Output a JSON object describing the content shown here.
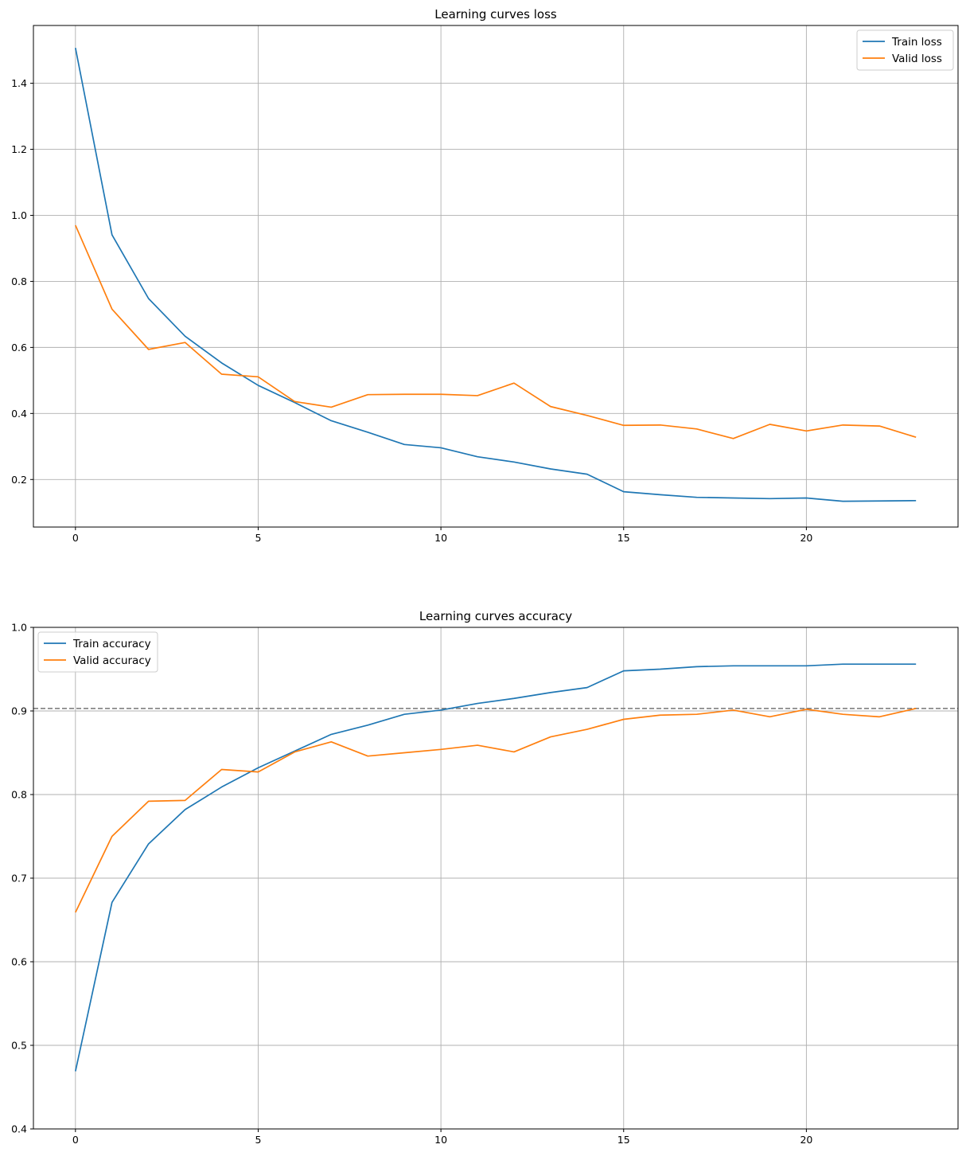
{
  "chart_data": [
    {
      "type": "line",
      "title": "Learning curves loss",
      "xlabel": "",
      "ylabel": "",
      "xlim": [
        -1.15,
        24.15
      ],
      "ylim": [
        0.056,
        1.575
      ],
      "xticks": [
        0,
        5,
        10,
        15,
        20
      ],
      "xtick_labels": [
        "0",
        "5",
        "10",
        "15",
        "20"
      ],
      "yticks": [
        0.2,
        0.4,
        0.6,
        0.8,
        1.0,
        1.2,
        1.4
      ],
      "ytick_labels": [
        "0.2",
        "0.4",
        "0.6",
        "0.8",
        "1.0",
        "1.2",
        "1.4"
      ],
      "grid": true,
      "legend_position": "top-right",
      "x": [
        0,
        1,
        2,
        3,
        4,
        5,
        6,
        7,
        8,
        9,
        10,
        11,
        12,
        13,
        14,
        15,
        16,
        17,
        18,
        19,
        20,
        21,
        22,
        23
      ],
      "series": [
        {
          "name": "Train loss",
          "color": "#1f77b4",
          "values": [
            1.507,
            0.941,
            0.748,
            0.634,
            0.553,
            0.485,
            0.433,
            0.378,
            0.343,
            0.306,
            0.296,
            0.269,
            0.253,
            0.232,
            0.216,
            0.163,
            0.154,
            0.146,
            0.144,
            0.142,
            0.144,
            0.134,
            0.135,
            0.136
          ]
        },
        {
          "name": "Valid loss",
          "color": "#ff7f0e",
          "values": [
            0.97,
            0.716,
            0.594,
            0.615,
            0.519,
            0.511,
            0.436,
            0.419,
            0.457,
            0.458,
            0.458,
            0.454,
            0.492,
            0.421,
            0.394,
            0.364,
            0.365,
            0.353,
            0.324,
            0.367,
            0.347,
            0.365,
            0.362,
            0.328
          ]
        }
      ],
      "reference_lines": []
    },
    {
      "type": "line",
      "title": "Learning curves accuracy",
      "xlabel": "",
      "ylabel": "",
      "xlim": [
        -1.15,
        24.15
      ],
      "ylim": [
        0.4,
        1.0
      ],
      "xticks": [
        0,
        5,
        10,
        15,
        20
      ],
      "xtick_labels": [
        "0",
        "5",
        "10",
        "15",
        "20"
      ],
      "yticks": [
        0.4,
        0.5,
        0.6,
        0.7,
        0.8,
        0.9,
        1.0
      ],
      "ytick_labels": [
        "0.4",
        "0.5",
        "0.6",
        "0.7",
        "0.8",
        "0.9",
        "1.0"
      ],
      "grid": true,
      "legend_position": "top-left",
      "x": [
        0,
        1,
        2,
        3,
        4,
        5,
        6,
        7,
        8,
        9,
        10,
        11,
        12,
        13,
        14,
        15,
        16,
        17,
        18,
        19,
        20,
        21,
        22,
        23
      ],
      "series": [
        {
          "name": "Train accuracy",
          "color": "#1f77b4",
          "values": [
            0.469,
            0.671,
            0.741,
            0.782,
            0.809,
            0.832,
            0.852,
            0.872,
            0.883,
            0.896,
            0.901,
            0.909,
            0.915,
            0.922,
            0.928,
            0.948,
            0.95,
            0.953,
            0.954,
            0.954,
            0.954,
            0.956,
            0.956,
            0.956
          ]
        },
        {
          "name": "Valid accuracy",
          "color": "#ff7f0e",
          "values": [
            0.659,
            0.75,
            0.792,
            0.793,
            0.83,
            0.827,
            0.851,
            0.863,
            0.846,
            0.85,
            0.854,
            0.859,
            0.851,
            0.869,
            0.878,
            0.89,
            0.895,
            0.896,
            0.901,
            0.893,
            0.902,
            0.896,
            0.893,
            0.903
          ]
        }
      ],
      "reference_lines": [
        {
          "axis": "y",
          "value": 0.903,
          "color": "#808080",
          "style": "dashed"
        }
      ]
    }
  ]
}
